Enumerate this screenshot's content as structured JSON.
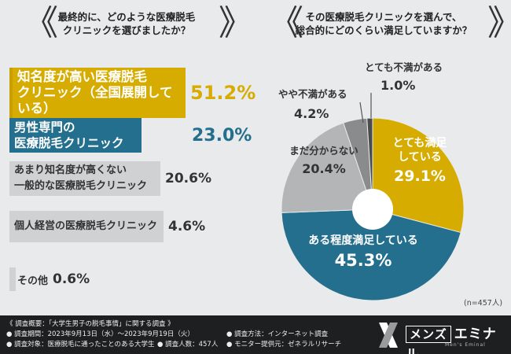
{
  "left": {
    "question": "最終的に、どのような医療脱毛クリニックを選びましたか？",
    "question_line1": "最終的に、どのような医療脱毛",
    "question_line2": "クリニックを選びましたか？",
    "items": [
      {
        "line1": "知名度が高い医療脱毛",
        "line2": "クリニック（全国展開している）",
        "pct": "51.2%"
      },
      {
        "line1": "男性専門の",
        "line2": "医療脱毛クリニック",
        "pct": "23.0%"
      },
      {
        "line1": "あまり知名度が高くない",
        "line2": "一般的な医療脱毛クリニック",
        "pct": "20.6%"
      },
      {
        "line1": "個人経営の医療脱毛クリニック",
        "pct": "4.6%"
      },
      {
        "line1": "その他",
        "pct": "0.6%"
      }
    ]
  },
  "right": {
    "question_line1": "その医療脱毛クリニックを選んで、",
    "question_line2": "総合的にどのくらい満足していますか？",
    "n_label": "(n=457人)"
  },
  "chart_data": [
    {
      "type": "bar",
      "title": "最終的に、どのような医療脱毛クリニックを選びましたか？",
      "categories": [
        "知名度が高い医療脱毛クリニック（全国展開している）",
        "男性専門の医療脱毛クリニック",
        "あまり知名度が高くない一般的な医療脱毛クリニック",
        "個人経営の医療脱毛クリニック",
        "その他"
      ],
      "values": [
        51.2,
        23.0,
        20.6,
        4.6,
        0.6
      ],
      "unit": "%"
    },
    {
      "type": "pie",
      "title": "その医療脱毛クリニックを選んで、総合的にどのくらい満足していますか？",
      "slices": [
        {
          "label": "とても満足している",
          "line1": "とても満足",
          "line2": "している",
          "value": 29.1,
          "pct": "29.1%",
          "color": "#d7ac00"
        },
        {
          "label": "ある程度満足している",
          "line1": "ある程度満足している",
          "value": 45.3,
          "pct": "45.3%",
          "color": "#236f8d"
        },
        {
          "label": "まだ分からない",
          "line1": "まだ分からない",
          "value": 20.4,
          "pct": "20.4%",
          "color": "#b4b5b7"
        },
        {
          "label": "やや不満がある",
          "line1": "やや不満がある",
          "value": 4.2,
          "pct": "4.2%",
          "color": "#8a8b8d"
        },
        {
          "label": "とても不満がある",
          "line1": "とても不満がある",
          "value": 1.0,
          "pct": "1.0%",
          "color": "#4a4b4d"
        }
      ],
      "n": "(n=457人)"
    }
  ],
  "footer": {
    "heading": "《 調査概要：「大学生男子の脱毛事情」に関する調査 》",
    "period": "● 調査期間：2023年9月13日（水）～2023年9月19日（火）",
    "target": "● 調査対象：医療脱毛に通ったことのある大学生",
    "count": "● 調査人数：457人",
    "method": "● 調査方法：インターネット調査",
    "monitor": "● モニター提供元：ゼネラルリサーチ"
  },
  "logo": {
    "box": "メンズ",
    "name": "エミナル",
    "sub": "Men's Eminal"
  }
}
